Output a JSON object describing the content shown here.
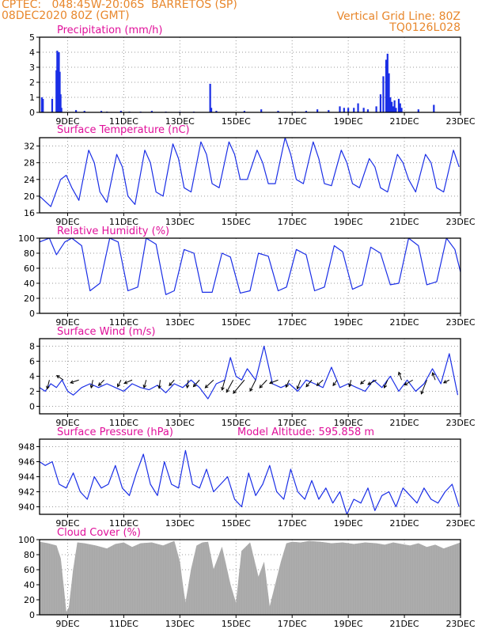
{
  "header": {
    "line1_left": "CPTEC:   048:45W-20:06S  BARRETOS (SP)",
    "line2_left": "08DEC2020 80Z (GMT)",
    "line1_right": "Vertical Grid Line: 80Z",
    "line2_right": "TQ0126L028"
  },
  "colors": {
    "header": "#e8872c",
    "title": "#e0109a",
    "series": "#1a2ee6",
    "cloud": "#a8a8a8",
    "arrow": "#000000"
  },
  "model_altitude": "Model Altitude: 595.858 m",
  "x_ticks": [
    "9DEC",
    "11DEC",
    "13DEC",
    "15DEC",
    "17DEC",
    "19DEC",
    "21DEC",
    "23DEC"
  ],
  "chart_data": [
    {
      "id": "precip",
      "type": "bar",
      "title": "Precipitation (mm/h)",
      "ylim": [
        0,
        5
      ],
      "yticks": [
        "0",
        "1",
        "2",
        "3",
        "4",
        "5"
      ],
      "grid": true,
      "x": [
        8.08,
        8.12,
        8.45,
        8.6,
        8.63,
        8.66,
        8.69,
        8.72,
        8.75,
        8.78,
        9.3,
        9.6,
        10.2,
        10.4,
        10.9,
        11.2,
        11.6,
        12.0,
        12.5,
        13.0,
        13.5,
        14.08,
        14.12,
        14.3,
        15.3,
        15.9,
        16.5,
        17.1,
        17.5,
        17.9,
        18.3,
        18.7,
        18.85,
        19.0,
        19.2,
        19.35,
        19.55,
        19.7,
        20.0,
        20.15,
        20.25,
        20.35,
        20.4,
        20.45,
        20.5,
        20.55,
        20.6,
        20.65,
        20.7,
        20.8,
        20.85,
        20.9,
        21.5,
        22.05
      ],
      "values": [
        1.0,
        0.9,
        0.9,
        2.8,
        4.1,
        3.0,
        4.0,
        2.7,
        1.2,
        0.3,
        0.15,
        0.1,
        0.1,
        0.05,
        0.1,
        0.05,
        0.05,
        0.1,
        0.05,
        0.05,
        0.05,
        1.9,
        0.3,
        0.1,
        0.1,
        0.2,
        0.1,
        0.05,
        0.1,
        0.2,
        0.15,
        0.4,
        0.3,
        0.3,
        0.3,
        0.6,
        0.3,
        0.2,
        0.4,
        1.2,
        2.4,
        3.5,
        3.9,
        2.6,
        1.0,
        0.7,
        0.4,
        0.8,
        0.3,
        0.9,
        0.6,
        0.3,
        0.2,
        0.5
      ]
    },
    {
      "id": "temp",
      "type": "line",
      "title": "Surface Temperature (nC)",
      "ylim": [
        16,
        34
      ],
      "yticks": [
        "16",
        "20",
        "24",
        "28",
        "32"
      ],
      "grid": true,
      "x": [
        8,
        8.4,
        8.75,
        8.95,
        9.15,
        9.4,
        9.75,
        9.95,
        10.15,
        10.4,
        10.75,
        10.95,
        11.15,
        11.4,
        11.75,
        11.95,
        12.15,
        12.4,
        12.75,
        12.95,
        13.15,
        13.4,
        13.75,
        13.95,
        14.15,
        14.4,
        14.75,
        14.95,
        15.15,
        15.4,
        15.75,
        15.95,
        16.15,
        16.4,
        16.75,
        16.95,
        17.15,
        17.4,
        17.75,
        17.95,
        18.15,
        18.4,
        18.75,
        18.95,
        19.15,
        19.4,
        19.75,
        19.95,
        20.15,
        20.4,
        20.75,
        20.95,
        21.15,
        21.4,
        21.75,
        21.95,
        22.15,
        22.4,
        22.75,
        22.95
      ],
      "values": [
        20,
        17.5,
        24,
        25,
        22,
        19,
        31,
        28,
        21,
        18.5,
        30,
        27,
        20,
        18,
        31,
        28,
        21,
        20,
        32.5,
        29,
        22,
        21,
        33,
        30,
        23,
        22,
        33,
        30,
        24,
        24,
        31,
        28,
        23,
        23,
        34,
        30,
        24,
        23,
        33,
        29,
        23,
        22.5,
        31,
        28,
        23,
        22,
        29,
        27,
        22,
        21,
        30,
        28,
        24,
        21,
        30,
        28,
        22,
        21,
        31,
        27
      ]
    },
    {
      "id": "rh",
      "type": "line",
      "title": "Relative Humidity (%)",
      "ylim": [
        0,
        100
      ],
      "yticks": [
        "0",
        "20",
        "40",
        "60",
        "80",
        "100"
      ],
      "grid": true,
      "x": [
        8,
        8.35,
        8.6,
        8.9,
        9.15,
        9.5,
        9.8,
        10.15,
        10.5,
        10.8,
        11.15,
        11.5,
        11.8,
        12.15,
        12.5,
        12.8,
        13.15,
        13.5,
        13.8,
        14.15,
        14.5,
        14.8,
        15.15,
        15.5,
        15.8,
        16.15,
        16.5,
        16.8,
        17.15,
        17.5,
        17.8,
        18.15,
        18.5,
        18.8,
        19.15,
        19.5,
        19.8,
        20.15,
        20.5,
        20.8,
        21.15,
        21.5,
        21.8,
        22.15,
        22.5,
        22.8,
        23
      ],
      "values": [
        95,
        100,
        78,
        95,
        100,
        90,
        30,
        40,
        100,
        95,
        30,
        35,
        100,
        92,
        25,
        30,
        85,
        80,
        28,
        28,
        80,
        75,
        27,
        30,
        80,
        76,
        30,
        35,
        85,
        78,
        30,
        35,
        90,
        82,
        32,
        38,
        88,
        80,
        38,
        40,
        100,
        90,
        38,
        42,
        100,
        85,
        55
      ]
    },
    {
      "id": "wind",
      "type": "line",
      "title": "Surface Wind (m/s)",
      "ylim": [
        -1,
        9
      ],
      "yticks": [
        "0",
        "2",
        "4",
        "6",
        "8"
      ],
      "grid": true,
      "x": [
        8,
        8.2,
        8.4,
        8.6,
        8.8,
        9.0,
        9.2,
        9.5,
        9.8,
        10.1,
        10.4,
        10.7,
        11.0,
        11.3,
        11.6,
        11.9,
        12.2,
        12.5,
        12.8,
        13.1,
        13.4,
        13.7,
        14.0,
        14.3,
        14.6,
        14.8,
        15.0,
        15.2,
        15.4,
        15.7,
        16.0,
        16.3,
        16.6,
        16.9,
        17.2,
        17.5,
        17.8,
        18.1,
        18.4,
        18.7,
        19.0,
        19.3,
        19.6,
        19.9,
        20.2,
        20.5,
        20.8,
        21.1,
        21.4,
        21.7,
        22.0,
        22.3,
        22.6,
        22.9
      ],
      "values": [
        2.5,
        2,
        3,
        2.5,
        3.5,
        2,
        1.5,
        2.5,
        3,
        2.5,
        3,
        2.5,
        2,
        3,
        2.5,
        2.2,
        2.8,
        1.8,
        3,
        2.5,
        3.5,
        2.5,
        1,
        3,
        3.5,
        6.5,
        4,
        3.5,
        5,
        3.5,
        8,
        3,
        2.5,
        3,
        2,
        3.5,
        3,
        2.5,
        5.2,
        2.5,
        3,
        2.5,
        2,
        3.5,
        2.5,
        4,
        2,
        3.5,
        2,
        3,
        5,
        3,
        7,
        1.5
      ],
      "arrows": [
        {
          "x": 8.35,
          "u": -0.4,
          "v": -1.6
        },
        {
          "x": 8.85,
          "u": -1.2,
          "v": 0.8
        },
        {
          "x": 9.4,
          "u": -1.5,
          "v": -0.5
        },
        {
          "x": 9.9,
          "u": -0.3,
          "v": -1.4
        },
        {
          "x": 10.3,
          "u": -1.0,
          "v": -1.0
        },
        {
          "x": 10.9,
          "u": -0.6,
          "v": -1.2
        },
        {
          "x": 11.3,
          "u": -1.4,
          "v": -0.6
        },
        {
          "x": 11.8,
          "u": -0.4,
          "v": -1.4
        },
        {
          "x": 12.3,
          "u": -0.2,
          "v": -1.5
        },
        {
          "x": 12.8,
          "u": -0.9,
          "v": -1.0
        },
        {
          "x": 13.3,
          "u": -0.2,
          "v": -1.4
        },
        {
          "x": 13.7,
          "u": -1.1,
          "v": -1.2
        },
        {
          "x": 14.2,
          "u": -1.5,
          "v": -1.4
        },
        {
          "x": 14.6,
          "u": -0.5,
          "v": -1.8
        },
        {
          "x": 14.9,
          "u": -1.2,
          "v": -2.2
        },
        {
          "x": 15.3,
          "u": -2.0,
          "v": -2.4
        },
        {
          "x": 15.7,
          "u": -1.0,
          "v": -2.0
        },
        {
          "x": 16.1,
          "u": -1.3,
          "v": -1.4
        },
        {
          "x": 16.5,
          "u": -1.5,
          "v": -0.6
        },
        {
          "x": 16.9,
          "u": -0.6,
          "v": -1.3
        },
        {
          "x": 17.3,
          "u": -0.6,
          "v": -1.6
        },
        {
          "x": 17.7,
          "u": -1.0,
          "v": -1.2
        },
        {
          "x": 18.1,
          "u": -1.1,
          "v": -1.0
        },
        {
          "x": 18.6,
          "u": -0.7,
          "v": -1.0
        },
        {
          "x": 19.1,
          "u": -0.3,
          "v": -1.2
        },
        {
          "x": 19.6,
          "u": -0.8,
          "v": -0.7
        },
        {
          "x": 20.0,
          "u": -1.5,
          "v": -0.8
        },
        {
          "x": 20.4,
          "u": -0.6,
          "v": -1.4
        },
        {
          "x": 20.9,
          "u": -0.5,
          "v": 1.4
        },
        {
          "x": 21.3,
          "u": -1.5,
          "v": -0.9
        },
        {
          "x": 21.8,
          "u": -1.0,
          "v": -2.5
        },
        {
          "x": 22.1,
          "u": -0.5,
          "v": 1.3
        },
        {
          "x": 22.6,
          "u": -1.0,
          "v": -0.5
        }
      ]
    },
    {
      "id": "pres",
      "type": "line",
      "title": "Surface Pressure (hPa)",
      "ylim": [
        939,
        949
      ],
      "yticks": [
        "940",
        "942",
        "944",
        "946",
        "948"
      ],
      "grid": true,
      "x": [
        8,
        8.2,
        8.45,
        8.7,
        8.95,
        9.2,
        9.45,
        9.7,
        9.95,
        10.2,
        10.45,
        10.7,
        10.95,
        11.2,
        11.45,
        11.7,
        11.95,
        12.2,
        12.45,
        12.7,
        12.95,
        13.2,
        13.45,
        13.7,
        13.95,
        14.2,
        14.45,
        14.7,
        14.95,
        15.2,
        15.45,
        15.7,
        15.95,
        16.2,
        16.45,
        16.7,
        16.95,
        17.2,
        17.45,
        17.7,
        17.95,
        18.2,
        18.45,
        18.7,
        18.95,
        19.2,
        19.45,
        19.7,
        19.95,
        20.2,
        20.45,
        20.7,
        20.95,
        21.2,
        21.45,
        21.7,
        21.95,
        22.2,
        22.45,
        22.7,
        22.95
      ],
      "values": [
        946,
        945.5,
        946,
        943,
        942.5,
        944.5,
        942,
        941,
        944,
        942.5,
        943,
        945.5,
        942.5,
        941.5,
        944.5,
        947,
        943,
        941.5,
        946,
        943,
        942.5,
        947.5,
        943,
        942.5,
        945,
        942,
        943,
        944,
        941,
        940,
        944.5,
        941.5,
        943,
        945.5,
        942,
        941,
        945,
        942,
        941,
        943.5,
        941,
        942.5,
        940.5,
        942,
        939,
        941,
        940.5,
        942.5,
        939.5,
        941.5,
        942,
        940,
        942.5,
        941.5,
        940.5,
        942.5,
        941,
        940.5,
        942,
        943,
        940
      ]
    },
    {
      "id": "cloud",
      "type": "area",
      "title": "Cloud Cover (%)",
      "ylim": [
        0,
        100
      ],
      "yticks": [
        "0",
        "20",
        "40",
        "60",
        "80",
        "100"
      ],
      "grid": true,
      "x": [
        8,
        8.3,
        8.6,
        8.75,
        8.85,
        8.95,
        9.05,
        9.2,
        9.35,
        9.6,
        10.0,
        10.4,
        10.7,
        11.0,
        11.3,
        11.6,
        12.0,
        12.4,
        12.8,
        13.0,
        13.1,
        13.2,
        13.4,
        13.6,
        13.8,
        14.0,
        14.2,
        14.5,
        14.8,
        15.0,
        15.2,
        15.5,
        15.8,
        16.0,
        16.2,
        16.4,
        16.6,
        16.8,
        17.0,
        17.3,
        17.6,
        18.0,
        18.4,
        18.8,
        19.2,
        19.6,
        20.0,
        20.3,
        20.6,
        20.9,
        21.2,
        21.5,
        21.8,
        22.1,
        22.4,
        22.7,
        23.0
      ],
      "values": [
        97,
        95,
        92,
        75,
        40,
        3,
        10,
        60,
        96,
        95,
        92,
        88,
        94,
        96,
        90,
        95,
        96,
        92,
        98,
        70,
        40,
        15,
        60,
        92,
        96,
        97,
        60,
        90,
        40,
        15,
        85,
        96,
        50,
        70,
        10,
        40,
        70,
        95,
        97,
        96,
        98,
        97,
        95,
        96,
        94,
        96,
        95,
        93,
        96,
        94,
        92,
        95,
        90,
        93,
        88,
        92,
        96
      ]
    }
  ]
}
